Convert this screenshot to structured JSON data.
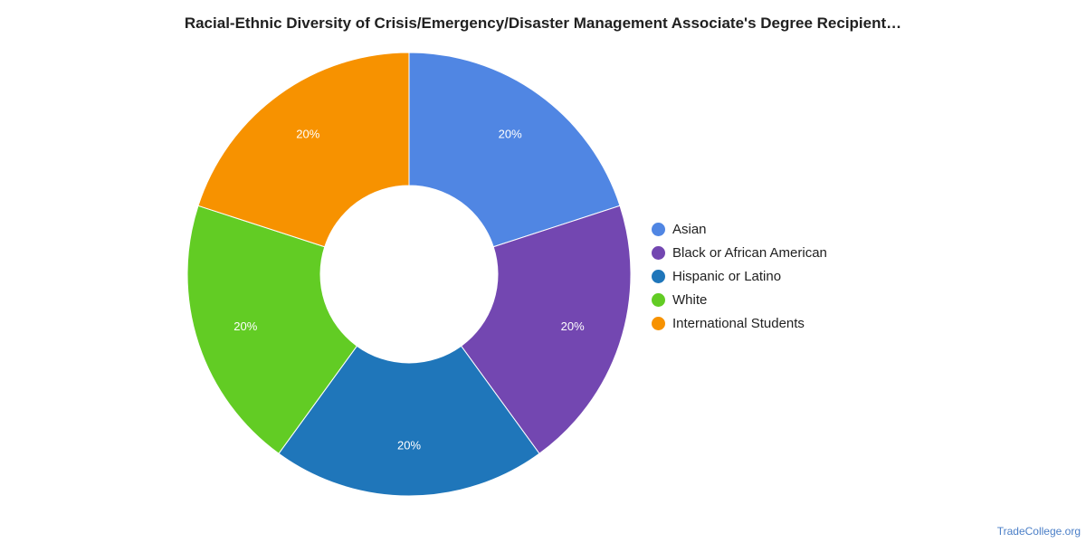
{
  "chart_data": {
    "type": "pie",
    "title": "Racial-Ethnic Diversity of Crisis/Emergency/Disaster Management Associate's Degree Recipient…",
    "donut": true,
    "categories": [
      "Asian",
      "Black or African American",
      "Hispanic or Latino",
      "White",
      "International Students"
    ],
    "values": [
      20,
      20,
      20,
      20,
      20
    ],
    "value_labels": [
      "20%",
      "20%",
      "20%",
      "20%",
      "20%"
    ],
    "colors": [
      "#5086e3",
      "#7347b1",
      "#1f76ba",
      "#62cc24",
      "#f79200"
    ],
    "legend_position": "right"
  },
  "footer": {
    "source": "TradeCollege.org"
  }
}
